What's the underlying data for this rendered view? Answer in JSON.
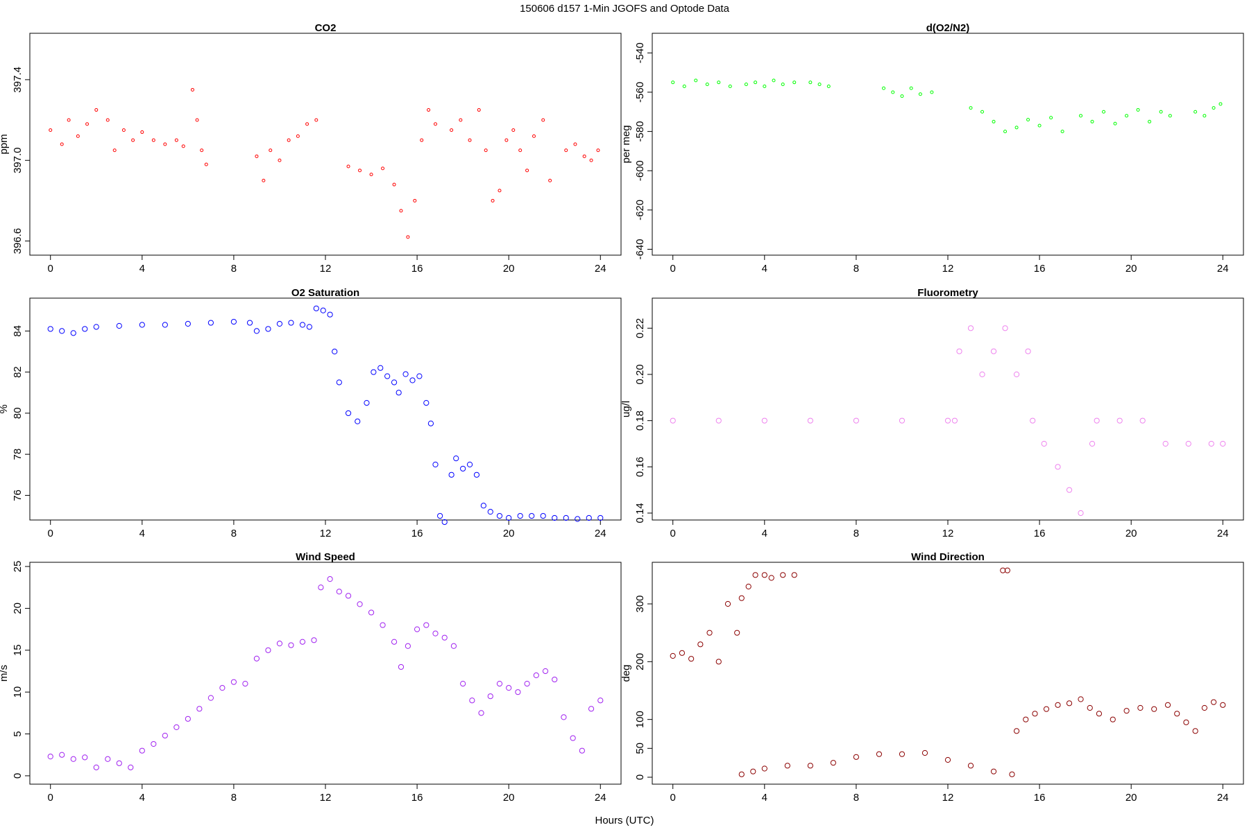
{
  "figure": {
    "title": "150606   d157   1-Min  JGOFS and Optode Data",
    "xlabel": "Hours (UTC)"
  },
  "chart_data": [
    {
      "type": "scatter",
      "title": "CO2",
      "ylabel": "ppm",
      "color": "#ff0000",
      "marker": "small-open-circle",
      "xlim": [
        -0.9,
        24.9
      ],
      "ylim": [
        396.53,
        397.63
      ],
      "xticks": [
        0,
        4,
        8,
        12,
        16,
        20,
        24
      ],
      "yticks": [
        396.6,
        397.0,
        397.4
      ],
      "ytick_labels": [
        "396.6",
        "397.0",
        "397.4"
      ],
      "segments": [
        {
          "x": [
            0,
            0.5,
            0.8,
            1.2,
            1.6,
            2.0,
            2.5,
            2.8
          ],
          "y": [
            397.15,
            397.08,
            397.2,
            397.12,
            397.18,
            397.25,
            397.2,
            397.05
          ]
        },
        {
          "x": [
            3.2,
            3.6,
            4.0,
            4.5,
            5.0,
            5.5,
            5.8
          ],
          "y": [
            397.15,
            397.1,
            397.14,
            397.1,
            397.08,
            397.1,
            397.07
          ]
        },
        {
          "x": [
            6.2,
            6.4,
            6.6,
            6.8
          ],
          "y": [
            397.35,
            397.2,
            397.05,
            396.98
          ]
        },
        {
          "x": [
            9.0,
            9.3,
            9.6,
            10.0,
            10.4,
            10.8,
            11.2,
            11.6
          ],
          "y": [
            397.02,
            396.9,
            397.05,
            397.0,
            397.1,
            397.12,
            397.18,
            397.2
          ]
        },
        {
          "x": [
            13.0,
            13.5,
            14.0,
            14.5,
            15.0,
            15.3,
            15.6,
            15.9,
            16.2,
            16.5,
            16.8
          ],
          "y": [
            396.97,
            396.95,
            396.93,
            396.96,
            396.88,
            396.75,
            396.62,
            396.8,
            397.1,
            397.25,
            397.18
          ]
        },
        {
          "x": [
            17.5,
            17.9,
            18.3,
            18.7,
            19.0,
            19.3,
            19.6,
            19.9,
            20.2,
            20.5,
            20.8,
            21.1,
            21.5,
            21.8
          ],
          "y": [
            397.15,
            397.2,
            397.1,
            397.25,
            397.05,
            396.8,
            396.85,
            397.1,
            397.15,
            397.05,
            396.95,
            397.12,
            397.2,
            396.9
          ]
        },
        {
          "x": [
            22.5,
            22.9,
            23.3,
            23.6,
            23.9
          ],
          "y": [
            397.05,
            397.08,
            397.02,
            397.0,
            397.05
          ]
        }
      ]
    },
    {
      "type": "scatter",
      "title": "d(O2/N2)",
      "ylabel": "per meg",
      "color": "#00ff00",
      "marker": "small-open-circle",
      "xlim": [
        -0.9,
        24.9
      ],
      "ylim": [
        -643,
        -530
      ],
      "xticks": [
        0,
        4,
        8,
        12,
        16,
        20,
        24
      ],
      "yticks": [
        -640,
        -620,
        -600,
        -580,
        -560,
        -540
      ],
      "ytick_labels": [
        "-640",
        "-620",
        "-600",
        "-580",
        "-560",
        "-540"
      ],
      "segments": [
        {
          "x": [
            0,
            0.5,
            1.0,
            1.5,
            2.0,
            2.5
          ],
          "y": [
            -555,
            -557,
            -554,
            -556,
            -555,
            -557
          ]
        },
        {
          "x": [
            3.2,
            3.6,
            4.0,
            4.4,
            4.8,
            5.3
          ],
          "y": [
            -556,
            -555,
            -557,
            -554,
            -556,
            -555
          ]
        },
        {
          "x": [
            6.0,
            6.4,
            6.8
          ],
          "y": [
            -555,
            -556,
            -557
          ]
        },
        {
          "x": [
            9.2,
            9.6,
            10.0,
            10.4,
            10.8,
            11.3
          ],
          "y": [
            -558,
            -560,
            -562,
            -558,
            -561,
            -560
          ]
        },
        {
          "x": [
            13.0,
            13.5,
            14.0,
            14.5,
            15.0,
            15.5,
            16.0,
            16.5,
            17.0
          ],
          "y": [
            -568,
            -570,
            -575,
            -580,
            -578,
            -574,
            -577,
            -573,
            -580
          ]
        },
        {
          "x": [
            17.8,
            18.3,
            18.8,
            19.3,
            19.8,
            20.3,
            20.8,
            21.3,
            21.7
          ],
          "y": [
            -572,
            -575,
            -570,
            -576,
            -572,
            -569,
            -575,
            -570,
            -572
          ]
        },
        {
          "x": [
            22.8,
            23.2,
            23.6,
            23.9
          ],
          "y": [
            -570,
            -572,
            -568,
            -566
          ]
        }
      ]
    },
    {
      "type": "scatter",
      "title": "O2 Saturation",
      "ylabel": "%",
      "color": "#0000ff",
      "marker": "open-circle",
      "xlim": [
        -0.9,
        24.9
      ],
      "ylim": [
        74.8,
        85.6
      ],
      "xticks": [
        0,
        4,
        8,
        12,
        16,
        20,
        24
      ],
      "yticks": [
        76,
        78,
        80,
        82,
        84
      ],
      "ytick_labels": [
        "76",
        "78",
        "80",
        "82",
        "84"
      ],
      "segments": [
        {
          "x": [
            0,
            0.5,
            1.0,
            1.5,
            2.0,
            3.0,
            4.0,
            5.0,
            6.0,
            7.0,
            8.0,
            8.7,
            9.0,
            9.5,
            10.0,
            10.5,
            11.0,
            11.3,
            11.6,
            11.9,
            12.2,
            12.4,
            12.6,
            13.0,
            13.4,
            13.8,
            14.1,
            14.4,
            14.7,
            15.0,
            15.2,
            15.5,
            15.8,
            16.1,
            16.4,
            16.6,
            16.8,
            17.0,
            17.2,
            17.5,
            17.7,
            18.0,
            18.3,
            18.6,
            18.9,
            19.2,
            19.6,
            20.0,
            20.5,
            21.0,
            21.5,
            22.0,
            22.5,
            23.0,
            23.5,
            24.0
          ],
          "y": [
            84.1,
            84.0,
            83.9,
            84.1,
            84.2,
            84.25,
            84.3,
            84.3,
            84.35,
            84.4,
            84.45,
            84.4,
            84.0,
            84.1,
            84.35,
            84.4,
            84.3,
            84.2,
            85.1,
            85.0,
            84.8,
            83.0,
            81.5,
            80.0,
            79.6,
            80.5,
            82.0,
            82.2,
            81.8,
            81.5,
            81.0,
            81.9,
            81.6,
            81.8,
            80.5,
            79.5,
            77.5,
            75.0,
            74.7,
            77.0,
            77.8,
            77.3,
            77.5,
            77.0,
            75.5,
            75.2,
            75.0,
            74.9,
            75.0,
            75.0,
            75.0,
            74.9,
            74.9,
            74.85,
            74.9,
            74.9
          ]
        }
      ]
    },
    {
      "type": "scatter",
      "title": "Fluorometry",
      "ylabel": "ug/l",
      "color": "#ee82ee",
      "marker": "open-circle",
      "xlim": [
        -0.9,
        24.9
      ],
      "ylim": [
        0.137,
        0.233
      ],
      "xticks": [
        0,
        4,
        8,
        12,
        16,
        20,
        24
      ],
      "yticks": [
        0.14,
        0.16,
        0.18,
        0.2,
        0.22
      ],
      "ytick_labels": [
        "0.14",
        "0.16",
        "0.18",
        "0.20",
        "0.22"
      ],
      "segments": [
        {
          "x": [
            0,
            2,
            4,
            6,
            8,
            10,
            12,
            12.3
          ],
          "y": [
            0.18,
            0.18,
            0.18,
            0.18,
            0.18,
            0.18,
            0.18,
            0.18
          ]
        },
        {
          "x": [
            12.5,
            13.0,
            13.5,
            14.0,
            14.5,
            15.0,
            15.5
          ],
          "y": [
            0.21,
            0.22,
            0.2,
            0.21,
            0.22,
            0.2,
            0.21
          ]
        },
        {
          "x": [
            15.7,
            16.2,
            16.8,
            17.3,
            17.8,
            18.3
          ],
          "y": [
            0.18,
            0.17,
            0.16,
            0.15,
            0.14,
            0.17
          ]
        },
        {
          "x": [
            18.5,
            19.5,
            20.5,
            21.5,
            22.5,
            23.5,
            24.0
          ],
          "y": [
            0.18,
            0.18,
            0.18,
            0.17,
            0.17,
            0.17,
            0.17
          ]
        }
      ]
    },
    {
      "type": "scatter",
      "title": "Wind Speed",
      "ylabel": "m/s",
      "color": "#a020f0",
      "marker": "open-circle",
      "xlim": [
        -0.9,
        24.9
      ],
      "ylim": [
        -1,
        25.5
      ],
      "xticks": [
        0,
        4,
        8,
        12,
        16,
        20,
        24
      ],
      "yticks": [
        0,
        5,
        10,
        15,
        20,
        25
      ],
      "ytick_labels": [
        "0",
        "5",
        "10",
        "15",
        "20",
        "25"
      ],
      "segments": [
        {
          "x": [
            0,
            0.5,
            1.0,
            1.5,
            2.0,
            2.5,
            3.0,
            3.5,
            4.0,
            4.5,
            5.0,
            5.5,
            6.0,
            6.5,
            7.0,
            7.5,
            8.0,
            8.5,
            9.0,
            9.5,
            10.0,
            10.5,
            11.0,
            11.5,
            11.8,
            12.2,
            12.6,
            13.0,
            13.5,
            14.0,
            14.5,
            15.0,
            15.3,
            15.6,
            16.0,
            16.4,
            16.8,
            17.2,
            17.6,
            18.0,
            18.4,
            18.8,
            19.2,
            19.6,
            20.0,
            20.4,
            20.8,
            21.2,
            21.6,
            22.0,
            22.4,
            22.8,
            23.2,
            23.6,
            24.0
          ],
          "y": [
            2.3,
            2.5,
            2.0,
            2.2,
            1.0,
            2.0,
            1.5,
            1.0,
            3.0,
            3.8,
            4.8,
            5.8,
            6.8,
            8.0,
            9.3,
            10.5,
            11.2,
            11.0,
            14.0,
            15.0,
            15.8,
            15.6,
            16.0,
            16.2,
            22.5,
            23.5,
            22.0,
            21.5,
            20.5,
            19.5,
            18.0,
            16.0,
            13.0,
            15.5,
            17.5,
            18.0,
            17.0,
            16.5,
            15.5,
            11.0,
            9.0,
            7.5,
            9.5,
            11.0,
            10.5,
            10.0,
            11.0,
            12.0,
            12.5,
            11.5,
            7.0,
            4.5,
            3.0,
            8.0,
            9.0
          ]
        }
      ]
    },
    {
      "type": "scatter",
      "title": "Wind Direction",
      "ylabel": "deg",
      "color": "#8b0000",
      "marker": "open-circle",
      "xlim": [
        -0.9,
        24.9
      ],
      "ylim": [
        -12,
        372
      ],
      "xticks": [
        0,
        4,
        8,
        12,
        16,
        20,
        24
      ],
      "yticks": [
        0,
        50,
        100,
        200,
        300
      ],
      "ytick_labels": [
        "0",
        "50",
        "100",
        "200",
        "300"
      ],
      "segments": [
        {
          "x": [
            0,
            0.4,
            0.8,
            1.2,
            1.6,
            2.0,
            2.4,
            2.8
          ],
          "y": [
            210,
            215,
            205,
            230,
            250,
            200,
            300,
            250
          ]
        },
        {
          "x": [
            3.0,
            3.3,
            3.6,
            4.0,
            4.3,
            4.8,
            5.3
          ],
          "y": [
            310,
            330,
            350,
            350,
            345,
            350,
            350
          ]
        },
        {
          "x": [
            3.0,
            3.5,
            4.0,
            5.0,
            6.0,
            7.0,
            8.0,
            9.0,
            10.0,
            11.0,
            12.0,
            13.0,
            14.0,
            14.8
          ],
          "y": [
            5,
            10,
            15,
            20,
            20,
            25,
            35,
            40,
            40,
            42,
            30,
            20,
            10,
            5
          ]
        },
        {
          "x": [
            15.0,
            15.4,
            15.8,
            16.3,
            16.8,
            17.3,
            17.8,
            18.2,
            18.6,
            19.2,
            19.8,
            20.4,
            21.0,
            21.6,
            22.0,
            22.4,
            22.8,
            23.2,
            23.6,
            24.0
          ],
          "y": [
            80,
            100,
            110,
            118,
            125,
            128,
            135,
            120,
            110,
            100,
            115,
            120,
            118,
            125,
            110,
            95,
            80,
            120,
            130,
            125
          ]
        },
        {
          "x": [
            14.4,
            14.6
          ],
          "y": [
            358,
            358
          ]
        }
      ]
    }
  ]
}
